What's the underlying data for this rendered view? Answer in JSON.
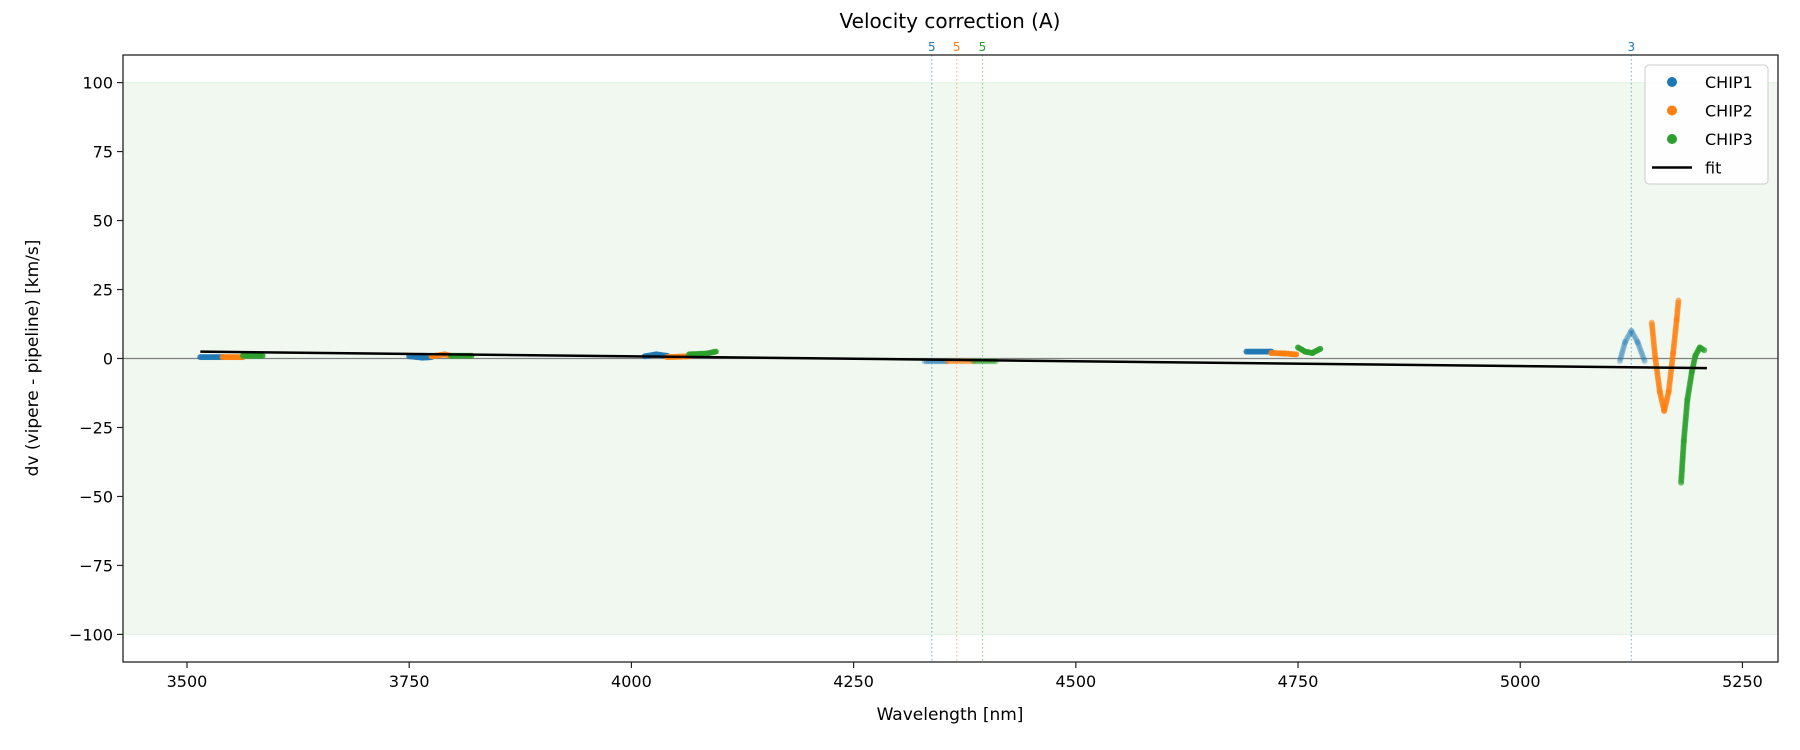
{
  "chart_data": {
    "type": "scatter",
    "title": "Velocity correction (A)",
    "xlabel": "Wavelength [nm]",
    "ylabel": "dv (vipere - pipeline) [km/s]",
    "xlim": [
      3428,
      5290
    ],
    "ylim": [
      -110,
      110
    ],
    "xticks": [
      3500,
      3750,
      4000,
      4250,
      4500,
      4750,
      5000,
      5250
    ],
    "yticks": [
      -100,
      -75,
      -50,
      -25,
      0,
      25,
      50,
      75,
      100
    ],
    "ytick_labels": [
      "−100",
      "−75",
      "−50",
      "−25",
      "0",
      "25",
      "50",
      "75",
      "100"
    ],
    "band": {
      "from": -100,
      "to": 100,
      "color": "#2ca02c"
    },
    "zero_line": 0,
    "legend": {
      "placement": "top-right",
      "entries": [
        "CHIP1",
        "CHIP2",
        "CHIP3",
        "fit"
      ]
    },
    "colors": {
      "CHIP1": "#1f77b4",
      "CHIP2": "#ff7f0e",
      "CHIP3": "#2ca02c",
      "fit": "#000000"
    },
    "series": [
      {
        "name": "CHIP1",
        "segments": [
          {
            "alpha": 0.9,
            "points": [
              [
                3515,
                0.5
              ],
              [
                3540,
                0.5
              ]
            ]
          },
          {
            "alpha": 0.9,
            "points": [
              [
                3750,
                0.8
              ],
              [
                3765,
                0.3
              ],
              [
                3775,
                0.5
              ]
            ]
          },
          {
            "alpha": 0.9,
            "points": [
              [
                4015,
                0.8
              ],
              [
                4028,
                1.5
              ],
              [
                4040,
                1.0
              ]
            ]
          },
          {
            "alpha": 0.4,
            "points": [
              [
                4330,
                -1.0
              ],
              [
                4355,
                -1.0
              ]
            ]
          },
          {
            "alpha": 0.9,
            "points": [
              [
                4692,
                2.5
              ],
              [
                4720,
                2.5
              ]
            ]
          },
          {
            "alpha": 0.3,
            "points": [
              [
                5112,
                -1
              ],
              [
                5118,
                6
              ],
              [
                5125,
                10
              ],
              [
                5132,
                6
              ],
              [
                5140,
                -1
              ]
            ]
          }
        ]
      },
      {
        "name": "CHIP2",
        "segments": [
          {
            "alpha": 0.9,
            "points": [
              [
                3540,
                0.5
              ],
              [
                3563,
                0.5
              ]
            ]
          },
          {
            "alpha": 0.9,
            "points": [
              [
                3775,
                0.8
              ],
              [
                3790,
                1.5
              ],
              [
                3797,
                1.0
              ]
            ]
          },
          {
            "alpha": 0.9,
            "points": [
              [
                4040,
                0.5
              ],
              [
                4065,
                0.8
              ]
            ]
          },
          {
            "alpha": 0.4,
            "points": [
              [
                4355,
                -1.0
              ],
              [
                4385,
                -1.0
              ]
            ]
          },
          {
            "alpha": 0.9,
            "points": [
              [
                4720,
                2.0
              ],
              [
                4735,
                1.8
              ],
              [
                4748,
                1.5
              ]
            ]
          },
          {
            "alpha": 0.6,
            "points": [
              [
                5148,
                13
              ],
              [
                5152,
                0
              ],
              [
                5157,
                -12
              ],
              [
                5162,
                -19
              ],
              [
                5167,
                -12
              ],
              [
                5172,
                2
              ],
              [
                5176,
                14
              ],
              [
                5178,
                21
              ]
            ]
          }
        ]
      },
      {
        "name": "CHIP3",
        "segments": [
          {
            "alpha": 0.9,
            "points": [
              [
                3563,
                1.0
              ],
              [
                3585,
                1.0
              ]
            ]
          },
          {
            "alpha": 0.9,
            "points": [
              [
                3797,
                1.0
              ],
              [
                3820,
                1.0
              ]
            ]
          },
          {
            "alpha": 0.9,
            "points": [
              [
                4065,
                1.5
              ],
              [
                4085,
                1.8
              ],
              [
                4095,
                2.5
              ]
            ]
          },
          {
            "alpha": 0.4,
            "points": [
              [
                4385,
                -1.0
              ],
              [
                4410,
                -1.0
              ]
            ]
          },
          {
            "alpha": 0.9,
            "points": [
              [
                4750,
                4
              ],
              [
                4758,
                2.5
              ],
              [
                4766,
                2.0
              ],
              [
                4775,
                3.5
              ]
            ]
          },
          {
            "alpha": 0.7,
            "points": [
              [
                5181,
                -45
              ],
              [
                5184,
                -30
              ],
              [
                5188,
                -15
              ],
              [
                5193,
                -5
              ],
              [
                5197,
                1
              ],
              [
                5202,
                4
              ],
              [
                5207,
                3
              ]
            ]
          }
        ]
      },
      {
        "name": "fit",
        "points": [
          [
            3515,
            2.5
          ],
          [
            5210,
            -3.5
          ]
        ]
      }
    ],
    "markers": [
      {
        "chip": "CHIP1",
        "x": 4338,
        "label": "5"
      },
      {
        "chip": "CHIP2",
        "x": 4366,
        "label": "5"
      },
      {
        "chip": "CHIP3",
        "x": 4395,
        "label": "5"
      },
      {
        "chip": "CHIP1",
        "x": 5125,
        "label": "3"
      }
    ]
  }
}
